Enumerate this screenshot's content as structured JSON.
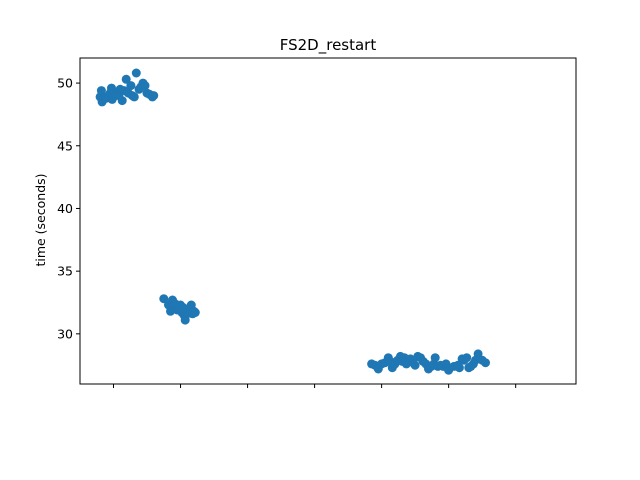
{
  "chart_data": {
    "type": "scatter",
    "title": "FS2D_restart",
    "xlabel": "",
    "ylabel": "time (seconds)",
    "xlim": [
      -0.5,
      6.9
    ],
    "ylim": [
      26,
      52
    ],
    "yticks": [
      30,
      35,
      40,
      45,
      50
    ],
    "xticks": [
      0,
      1,
      2,
      3,
      4,
      5,
      6
    ],
    "xtick_labels_shown": false,
    "grid": false,
    "marker_color": "#1f77b4",
    "series": [
      {
        "points": [
          [
            -0.2,
            48.9
          ],
          [
            -0.18,
            49.4
          ],
          [
            -0.17,
            48.5
          ],
          [
            -0.15,
            48.7
          ],
          [
            -0.12,
            48.9
          ],
          [
            -0.1,
            48.8
          ],
          [
            -0.05,
            49.2
          ],
          [
            -0.03,
            49.6
          ],
          [
            -0.02,
            48.7
          ],
          [
            0.0,
            48.9
          ],
          [
            0.03,
            49.1
          ],
          [
            0.06,
            49.3
          ],
          [
            0.08,
            49.0
          ],
          [
            0.1,
            49.5
          ],
          [
            0.13,
            48.6
          ],
          [
            0.16,
            49.4
          ],
          [
            0.19,
            50.3
          ],
          [
            0.22,
            49.2
          ],
          [
            0.26,
            49.8
          ],
          [
            0.28,
            49.0
          ],
          [
            0.31,
            48.9
          ],
          [
            0.34,
            50.8
          ],
          [
            0.38,
            49.5
          ],
          [
            0.41,
            49.7
          ],
          [
            0.44,
            50.0
          ],
          [
            0.47,
            49.8
          ],
          [
            0.5,
            49.2
          ],
          [
            0.54,
            49.1
          ],
          [
            0.58,
            48.9
          ],
          [
            0.6,
            49.0
          ]
        ]
      },
      {
        "points": [
          [
            0.75,
            32.8
          ],
          [
            0.82,
            32.3
          ],
          [
            0.85,
            31.8
          ],
          [
            0.88,
            32.7
          ],
          [
            0.9,
            32.0
          ],
          [
            0.92,
            32.4
          ],
          [
            0.95,
            31.9
          ],
          [
            0.98,
            32.1
          ],
          [
            1.0,
            32.3
          ],
          [
            1.02,
            31.7
          ],
          [
            1.04,
            32.1
          ],
          [
            1.05,
            31.5
          ],
          [
            1.07,
            31.1
          ],
          [
            1.08,
            31.9
          ],
          [
            1.1,
            31.6
          ],
          [
            1.16,
            32.3
          ],
          [
            1.18,
            31.6
          ],
          [
            1.2,
            31.8
          ],
          [
            1.22,
            31.7
          ]
        ]
      },
      {
        "points": [
          [
            3.85,
            27.6
          ],
          [
            3.9,
            27.5
          ],
          [
            3.95,
            27.2
          ],
          [
            4.0,
            27.6
          ],
          [
            4.05,
            27.7
          ],
          [
            4.1,
            28.1
          ],
          [
            4.13,
            27.8
          ],
          [
            4.16,
            27.3
          ],
          [
            4.2,
            27.6
          ],
          [
            4.24,
            27.9
          ],
          [
            4.28,
            28.2
          ],
          [
            4.31,
            27.8
          ],
          [
            4.34,
            28.1
          ],
          [
            4.37,
            27.6
          ],
          [
            4.4,
            27.9
          ],
          [
            4.43,
            28.0
          ],
          [
            4.47,
            27.7
          ],
          [
            4.5,
            27.5
          ],
          [
            4.54,
            28.2
          ],
          [
            4.58,
            28.1
          ],
          [
            4.62,
            27.8
          ],
          [
            4.66,
            27.6
          ],
          [
            4.7,
            27.2
          ],
          [
            4.74,
            27.4
          ],
          [
            4.78,
            27.6
          ],
          [
            4.8,
            28.1
          ],
          [
            4.84,
            27.4
          ],
          [
            4.88,
            27.5
          ],
          [
            4.92,
            27.4
          ],
          [
            4.96,
            27.6
          ],
          [
            5.0,
            27.1
          ],
          [
            5.08,
            27.4
          ],
          [
            5.14,
            27.5
          ],
          [
            5.16,
            27.3
          ],
          [
            5.2,
            28.0
          ],
          [
            5.23,
            27.9
          ],
          [
            5.27,
            28.1
          ],
          [
            5.3,
            27.3
          ],
          [
            5.33,
            27.4
          ],
          [
            5.37,
            27.6
          ],
          [
            5.4,
            27.9
          ],
          [
            5.44,
            28.4
          ],
          [
            5.5,
            27.9
          ],
          [
            5.55,
            27.7
          ]
        ]
      }
    ]
  }
}
